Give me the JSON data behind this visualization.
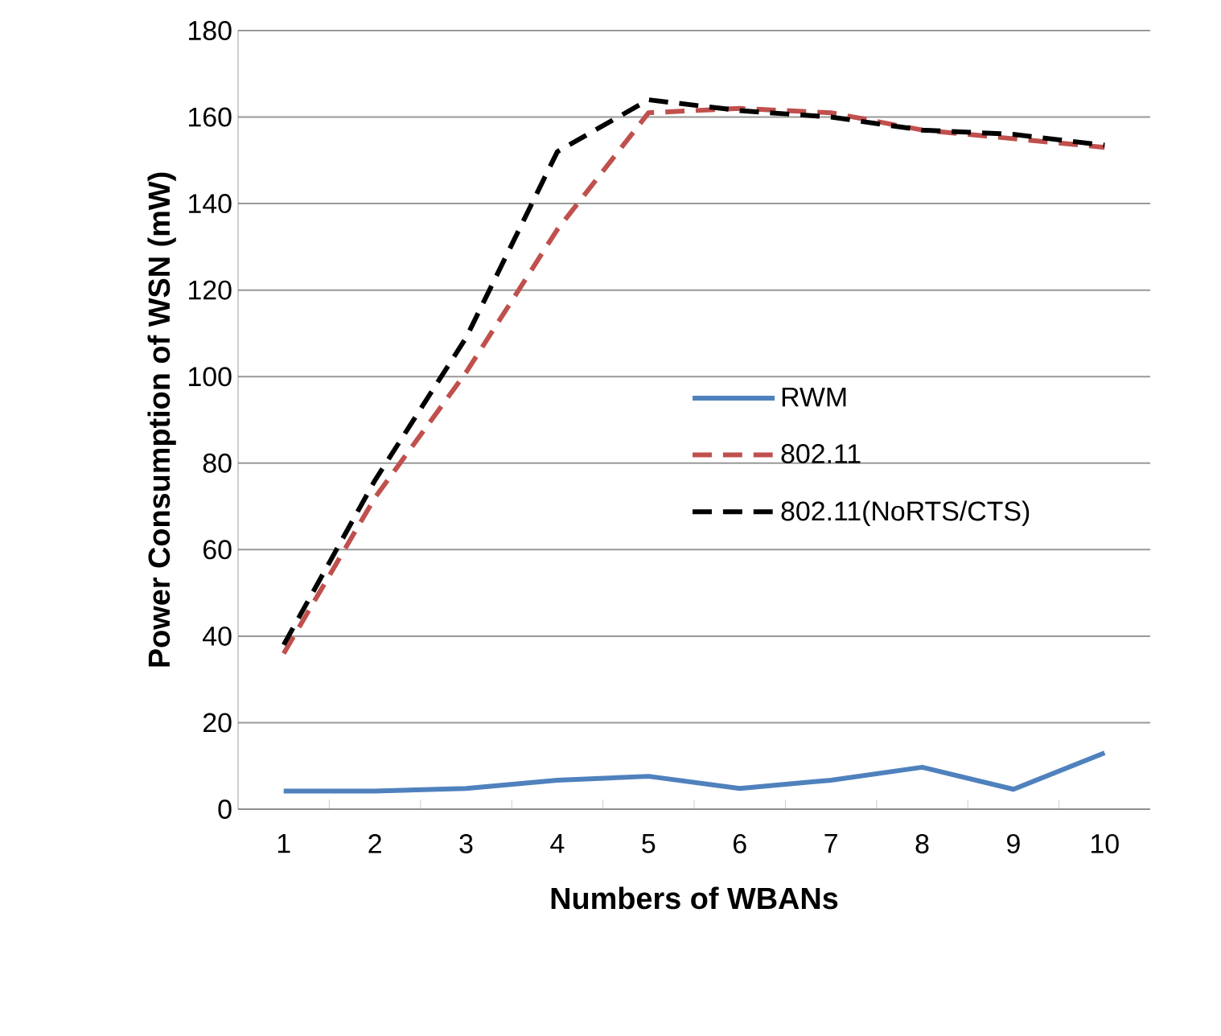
{
  "chart_data": {
    "type": "line",
    "xlabel": "Numbers of WBANs",
    "ylabel": "Power Consumption of WSN (mW)",
    "categories": [
      "1",
      "2",
      "3",
      "4",
      "5",
      "6",
      "7",
      "8",
      "9",
      "10"
    ],
    "series": [
      {
        "name": "RWM",
        "color": "#4f81bd",
        "line_style": "solid",
        "values": [
          4.2,
          4.2,
          4.8,
          6.7,
          7.6,
          4.8,
          6.7,
          9.7,
          4.6,
          13
        ]
      },
      {
        "name": "802.11",
        "color": "#c0504d",
        "line_style": "dashed",
        "values": [
          36,
          72,
          101,
          134,
          161,
          162,
          161,
          157,
          155,
          153
        ]
      },
      {
        "name": "802.11(NoRTS/CTS)",
        "color": "#000000",
        "line_style": "dashed",
        "values": [
          38,
          76,
          109,
          152,
          164,
          161.5,
          160,
          157,
          156,
          153.5
        ]
      }
    ],
    "ylim": [
      0,
      180
    ],
    "yticks": [
      0,
      20,
      40,
      60,
      80,
      100,
      120,
      140,
      160,
      180
    ],
    "grid": "y",
    "legend": "right",
    "marker": "none"
  }
}
